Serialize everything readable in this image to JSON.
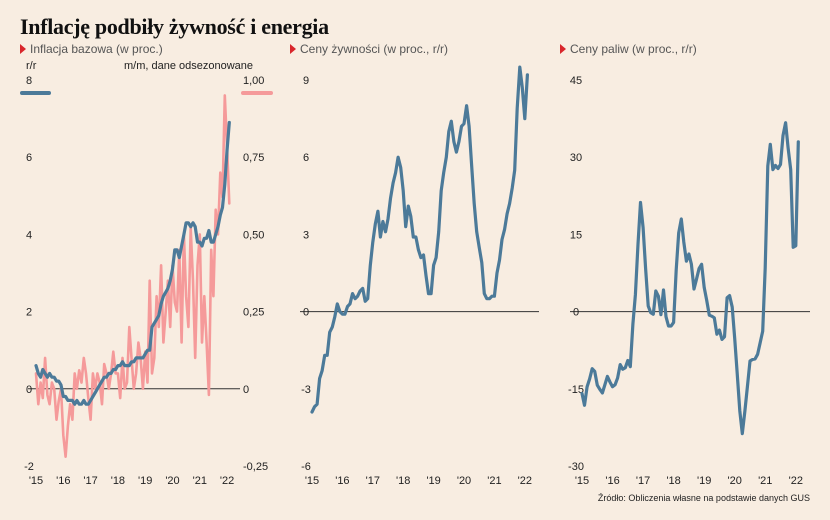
{
  "title": "Inflację podbiły żywność i energia",
  "source": "Źródło: Obliczenia własne na podstawie danych GUS",
  "colors": {
    "blue": "#4c7a99",
    "pink": "#f59a9a",
    "axis": "#333333",
    "text": "#222222",
    "marker": "#d9262b"
  },
  "panels": [
    {
      "title": "Inflacja bazowa (w proc.)"
    },
    {
      "title": "Ceny żywności (w proc., r/r)"
    },
    {
      "title": "Ceny paliw (w proc., r/r)"
    }
  ],
  "chart_data": [
    {
      "type": "line",
      "title": "Inflacja bazowa (w proc.)",
      "left_axis_label": "r/r",
      "right_axis_label": "m/m, dane odsezonowane",
      "x_ticks": [
        "'15",
        "'16",
        "'17",
        "'18",
        "'19",
        "'20",
        "'21",
        "'22"
      ],
      "x_tick_values": [
        2015,
        2016,
        2017,
        2018,
        2019,
        2020,
        2021,
        2022
      ],
      "xlim": [
        2015,
        2022.4
      ],
      "ylim": [
        -2,
        8
      ],
      "y_ticks": [
        "-2",
        "0",
        "2",
        "4",
        "6",
        "8"
      ],
      "y_tick_values": [
        -2,
        0,
        2,
        4,
        6,
        8
      ],
      "y2lim": [
        -0.25,
        1.0
      ],
      "y2_ticks": [
        "-0,25",
        "0",
        "0,25",
        "0,50",
        "0,75",
        "1,00"
      ],
      "y2_tick_values": [
        -0.25,
        0,
        0.25,
        0.5,
        0.75,
        1.0
      ],
      "series": [
        {
          "axis": "right",
          "color": "#f59a9a",
          "x": [
            2015.0,
            2015.083,
            2015.167,
            2015.25,
            2015.333,
            2015.417,
            2015.5,
            2015.583,
            2015.667,
            2015.75,
            2015.833,
            2015.917,
            2016.0,
            2016.083,
            2016.167,
            2016.25,
            2016.333,
            2016.417,
            2016.5,
            2016.583,
            2016.667,
            2016.75,
            2016.833,
            2016.917,
            2017.0,
            2017.083,
            2017.167,
            2017.25,
            2017.333,
            2017.417,
            2017.5,
            2017.583,
            2017.667,
            2017.75,
            2017.833,
            2017.917,
            2018.0,
            2018.083,
            2018.167,
            2018.25,
            2018.333,
            2018.417,
            2018.5,
            2018.583,
            2018.667,
            2018.75,
            2018.833,
            2018.917,
            2019.0,
            2019.083,
            2019.167,
            2019.25,
            2019.333,
            2019.417,
            2019.5,
            2019.583,
            2019.667,
            2019.75,
            2019.833,
            2019.917,
            2020.0,
            2020.083,
            2020.167,
            2020.25,
            2020.333,
            2020.417,
            2020.5,
            2020.583,
            2020.667,
            2020.75,
            2020.833,
            2020.917,
            2021.0,
            2021.083,
            2021.167,
            2021.25,
            2021.333,
            2021.417,
            2021.5,
            2021.583,
            2021.667,
            2021.75,
            2021.833,
            2021.917,
            2022.0,
            2022.083
          ],
          "y": [
            0.05,
            -0.05,
            0.02,
            -0.03,
            0.1,
            -0.02,
            -0.05,
            0.02,
            0.0,
            -0.1,
            -0.04,
            0.0,
            -0.15,
            -0.22,
            -0.12,
            -0.05,
            -0.1,
            0.05,
            0.0,
            0.06,
            0.02,
            0.1,
            0.05,
            -0.03,
            -0.1,
            0.05,
            0.0,
            0.05,
            0.02,
            -0.05,
            0.08,
            0.05,
            0.0,
            0.05,
            0.12,
            0.05,
            0.05,
            -0.03,
            0.1,
            0.0,
            0.02,
            0.2,
            0.1,
            0.0,
            0.05,
            0.15,
            0.1,
            0.0,
            0.12,
            0.02,
            0.35,
            0.05,
            0.1,
            0.3,
            0.2,
            0.4,
            0.15,
            0.25,
            0.35,
            0.2,
            0.4,
            0.28,
            0.25,
            0.45,
            0.15,
            0.5,
            0.3,
            0.2,
            0.52,
            0.35,
            0.1,
            0.4,
            0.5,
            0.15,
            0.3,
            0.15,
            -0.02,
            0.45,
            0.3,
            0.58,
            0.5,
            0.7,
            0.62,
            0.95,
            0.78,
            0.6
          ]
        },
        {
          "axis": "left",
          "color": "#4c7a99",
          "x": [
            2015.0,
            2015.083,
            2015.167,
            2015.25,
            2015.333,
            2015.417,
            2015.5,
            2015.583,
            2015.667,
            2015.75,
            2015.833,
            2015.917,
            2016.0,
            2016.083,
            2016.167,
            2016.25,
            2016.333,
            2016.417,
            2016.5,
            2016.583,
            2016.667,
            2016.75,
            2016.833,
            2016.917,
            2017.0,
            2017.083,
            2017.167,
            2017.25,
            2017.333,
            2017.417,
            2017.5,
            2017.583,
            2017.667,
            2017.75,
            2017.833,
            2017.917,
            2018.0,
            2018.083,
            2018.167,
            2018.25,
            2018.333,
            2018.417,
            2018.5,
            2018.583,
            2018.667,
            2018.75,
            2018.833,
            2018.917,
            2019.0,
            2019.083,
            2019.167,
            2019.25,
            2019.333,
            2019.417,
            2019.5,
            2019.583,
            2019.667,
            2019.75,
            2019.833,
            2019.917,
            2020.0,
            2020.083,
            2020.167,
            2020.25,
            2020.333,
            2020.417,
            2020.5,
            2020.583,
            2020.667,
            2020.75,
            2020.833,
            2020.917,
            2021.0,
            2021.083,
            2021.167,
            2021.25,
            2021.333,
            2021.417,
            2021.5,
            2021.583,
            2021.667,
            2021.75,
            2021.833,
            2021.917,
            2022.0,
            2022.083
          ],
          "y": [
            0.6,
            0.4,
            0.3,
            0.5,
            0.4,
            0.3,
            0.4,
            0.3,
            0.3,
            0.2,
            0.2,
            0.1,
            -0.2,
            -0.2,
            -0.3,
            -0.3,
            -0.3,
            -0.4,
            -0.3,
            -0.4,
            -0.4,
            -0.3,
            -0.4,
            -0.4,
            -0.3,
            -0.2,
            -0.1,
            0.0,
            0.1,
            0.2,
            0.3,
            0.3,
            0.4,
            0.4,
            0.5,
            0.5,
            0.6,
            0.6,
            0.7,
            0.6,
            0.6,
            0.6,
            0.7,
            0.7,
            0.8,
            0.8,
            0.8,
            0.8,
            0.9,
            1.0,
            1.0,
            1.6,
            1.7,
            1.8,
            1.9,
            2.2,
            2.4,
            2.5,
            2.6,
            2.8,
            3.1,
            3.6,
            3.6,
            3.4,
            3.7,
            4.0,
            4.3,
            4.3,
            4.2,
            4.3,
            4.2,
            3.8,
            3.8,
            3.7,
            3.9,
            3.9,
            4.1,
            3.8,
            3.8,
            4.0,
            4.2,
            4.5,
            4.7,
            5.3,
            6.2,
            6.9
          ]
        }
      ]
    },
    {
      "type": "line",
      "title": "Ceny żywności (w proc., r/r)",
      "x_ticks": [
        "'15",
        "'16",
        "'17",
        "'18",
        "'19",
        "'20",
        "'21",
        "'22"
      ],
      "x_tick_values": [
        2015,
        2016,
        2017,
        2018,
        2019,
        2020,
        2021,
        2022
      ],
      "xlim": [
        2015,
        2022.4
      ],
      "ylim": [
        -6,
        9
      ],
      "y_ticks": [
        "-6",
        "-3",
        "0",
        "3",
        "6",
        "9"
      ],
      "y_tick_values": [
        -6,
        -3,
        0,
        3,
        6,
        9
      ],
      "series": [
        {
          "color": "#4c7a99",
          "x": [
            2015.0,
            2015.083,
            2015.167,
            2015.25,
            2015.333,
            2015.417,
            2015.5,
            2015.583,
            2015.667,
            2015.75,
            2015.833,
            2015.917,
            2016.0,
            2016.083,
            2016.167,
            2016.25,
            2016.333,
            2016.417,
            2016.5,
            2016.583,
            2016.667,
            2016.75,
            2016.833,
            2016.917,
            2017.0,
            2017.083,
            2017.167,
            2017.25,
            2017.333,
            2017.417,
            2017.5,
            2017.583,
            2017.667,
            2017.75,
            2017.833,
            2017.917,
            2018.0,
            2018.083,
            2018.167,
            2018.25,
            2018.333,
            2018.417,
            2018.5,
            2018.583,
            2018.667,
            2018.75,
            2018.833,
            2018.917,
            2019.0,
            2019.083,
            2019.167,
            2019.25,
            2019.333,
            2019.417,
            2019.5,
            2019.583,
            2019.667,
            2019.75,
            2019.833,
            2019.917,
            2020.0,
            2020.083,
            2020.167,
            2020.25,
            2020.333,
            2020.417,
            2020.5,
            2020.583,
            2020.667,
            2020.75,
            2020.833,
            2020.917,
            2021.0,
            2021.083,
            2021.167,
            2021.25,
            2021.333,
            2021.417,
            2021.5,
            2021.583,
            2021.667,
            2021.75,
            2021.833,
            2021.917,
            2022.0,
            2022.083
          ],
          "y": [
            -3.9,
            -3.7,
            -3.6,
            -2.6,
            -2.3,
            -1.7,
            -1.7,
            -0.8,
            -0.6,
            -0.2,
            0.3,
            0.0,
            -0.1,
            -0.1,
            0.2,
            0.3,
            0.7,
            0.5,
            0.6,
            0.8,
            0.9,
            0.4,
            0.5,
            1.8,
            2.7,
            3.4,
            3.9,
            2.9,
            3.5,
            3.1,
            3.6,
            4.4,
            5.0,
            5.4,
            6.0,
            5.6,
            4.7,
            3.3,
            4.1,
            3.7,
            2.9,
            2.9,
            2.4,
            2.1,
            2.2,
            1.4,
            0.7,
            0.7,
            1.8,
            2.1,
            3.1,
            4.7,
            5.4,
            6.0,
            7.0,
            7.4,
            6.6,
            6.2,
            6.6,
            7.2,
            7.3,
            8.0,
            7.2,
            5.7,
            4.2,
            3.1,
            2.5,
            1.9,
            0.7,
            0.5,
            0.5,
            0.6,
            0.6,
            1.5,
            2.0,
            2.8,
            3.2,
            3.8,
            4.2,
            4.8,
            5.5,
            7.9,
            9.5,
            8.7,
            7.5,
            9.2
          ]
        }
      ]
    },
    {
      "type": "line",
      "title": "Ceny paliw (w proc., r/r)",
      "x_ticks": [
        "'15",
        "'16",
        "'17",
        "'18",
        "'19",
        "'20",
        "'21",
        "'22"
      ],
      "x_tick_values": [
        2015,
        2016,
        2017,
        2018,
        2019,
        2020,
        2021,
        2022
      ],
      "xlim": [
        2015,
        2022.4
      ],
      "ylim": [
        -30,
        45
      ],
      "y_ticks": [
        "-30",
        "-15",
        "0",
        "15",
        "30",
        "45"
      ],
      "y_tick_values": [
        -30,
        -15,
        0,
        15,
        30,
        45
      ],
      "series": [
        {
          "color": "#4c7a99",
          "x": [
            2015.0,
            2015.083,
            2015.167,
            2015.25,
            2015.333,
            2015.417,
            2015.5,
            2015.583,
            2015.667,
            2015.75,
            2015.833,
            2015.917,
            2016.0,
            2016.083,
            2016.167,
            2016.25,
            2016.333,
            2016.417,
            2016.5,
            2016.583,
            2016.667,
            2016.75,
            2016.833,
            2016.917,
            2017.0,
            2017.083,
            2017.167,
            2017.25,
            2017.333,
            2017.417,
            2017.5,
            2017.583,
            2017.667,
            2017.75,
            2017.833,
            2017.917,
            2018.0,
            2018.083,
            2018.167,
            2018.25,
            2018.333,
            2018.417,
            2018.5,
            2018.583,
            2018.667,
            2018.75,
            2018.833,
            2018.917,
            2019.0,
            2019.083,
            2019.167,
            2019.25,
            2019.333,
            2019.417,
            2019.5,
            2019.583,
            2019.667,
            2019.75,
            2019.833,
            2019.917,
            2020.0,
            2020.083,
            2020.167,
            2020.25,
            2020.333,
            2020.417,
            2020.5,
            2020.583,
            2020.667,
            2020.75,
            2020.833,
            2020.917,
            2021.0,
            2021.083,
            2021.167,
            2021.25,
            2021.333,
            2021.417,
            2021.5,
            2021.583,
            2021.667,
            2021.75,
            2021.833,
            2021.917,
            2022.0,
            2022.083
          ],
          "y": [
            -15.9,
            -18.2,
            -14.6,
            -13.1,
            -11.1,
            -11.6,
            -14.3,
            -15.1,
            -15.8,
            -14.2,
            -12.6,
            -13.7,
            -14.6,
            -14.2,
            -12.9,
            -10.3,
            -11.2,
            -10.9,
            -9.5,
            -10.7,
            -2.4,
            3.3,
            13.1,
            21.2,
            16.3,
            8.4,
            1.1,
            -0.2,
            -0.5,
            4.0,
            3.0,
            -0.6,
            4.2,
            -1.0,
            -2.8,
            -2.8,
            -2.1,
            8.1,
            15.3,
            18.0,
            13.5,
            9.8,
            11.2,
            9.2,
            4.4,
            6.3,
            8.4,
            9.2,
            4.7,
            2.2,
            -0.7,
            -0.9,
            -1.2,
            -4.4,
            -3.6,
            -5.4,
            -4.9,
            2.7,
            3.1,
            0.9,
            -5.2,
            -12.0,
            -19.3,
            -23.7,
            -19.3,
            -14.6,
            -9.6,
            -9.3,
            -9.2,
            -8.3,
            -6.1,
            -3.8,
            8.5,
            28.3,
            32.5,
            27.6,
            28.4,
            27.8,
            28.6,
            34.2,
            36.7,
            31.8,
            27.6,
            12.5,
            12.8,
            33.0
          ]
        }
      ]
    }
  ]
}
